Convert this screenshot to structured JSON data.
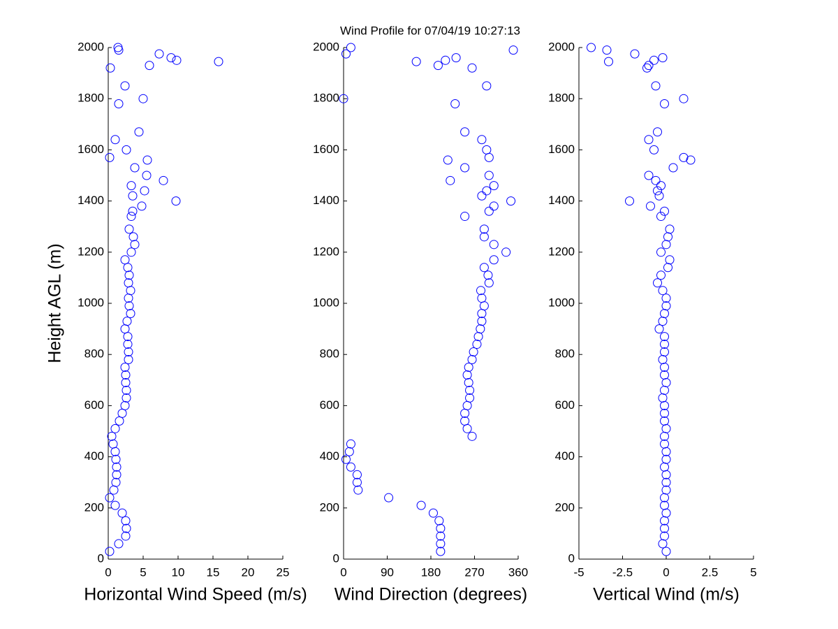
{
  "title": "Wind Profile for  07/04/19 10:27:13",
  "chart_data": [
    {
      "type": "scatter",
      "xlabel": "Horizontal Wind Speed (m/s)",
      "ylabel": "Height AGL (m)",
      "color": "#0000ff",
      "xlim": [
        0,
        25
      ],
      "xticks": [
        0,
        5,
        10,
        15,
        20,
        25
      ],
      "ylim": [
        0,
        2000
      ],
      "yticks": [
        0,
        200,
        400,
        600,
        800,
        1000,
        1200,
        1400,
        1600,
        1800,
        2000
      ],
      "x": [
        0.2,
        1.5,
        2.5,
        2.6,
        2.5,
        2.0,
        1.0,
        0.2,
        0.8,
        1.1,
        1.2,
        1.2,
        1.1,
        1.0,
        0.7,
        0.5,
        1.0,
        1.6,
        2.0,
        2.4,
        2.6,
        2.6,
        2.5,
        2.5,
        2.4,
        2.9,
        2.9,
        2.8,
        2.8,
        2.4,
        2.7,
        3.2,
        3.0,
        2.9,
        3.2,
        2.9,
        3.0,
        2.8,
        2.4,
        3.3,
        3.8,
        3.6,
        3.0,
        3.3,
        3.5,
        4.8,
        9.7,
        3.5,
        5.2,
        3.3,
        7.9,
        5.5,
        3.8,
        5.6,
        0.2,
        2.6,
        1.0,
        4.4,
        1.5,
        5.0,
        2.4,
        0.3,
        5.9,
        15.8,
        9.8,
        9.0,
        7.3,
        1.5,
        1.4
      ],
      "y": [
        30,
        60,
        90,
        120,
        150,
        180,
        210,
        240,
        270,
        300,
        330,
        360,
        390,
        420,
        450,
        480,
        510,
        540,
        570,
        600,
        630,
        660,
        690,
        720,
        750,
        780,
        810,
        840,
        870,
        900,
        930,
        960,
        990,
        1020,
        1050,
        1080,
        1110,
        1140,
        1170,
        1200,
        1230,
        1260,
        1290,
        1340,
        1360,
        1380,
        1400,
        1420,
        1440,
        1460,
        1480,
        1500,
        1530,
        1560,
        1570,
        1600,
        1640,
        1670,
        1780,
        1800,
        1850,
        1920,
        1930,
        1945,
        1950,
        1960,
        1975,
        1990,
        2000
      ]
    },
    {
      "type": "scatter",
      "xlabel": "Wind Direction (degrees)",
      "color": "#0000ff",
      "xlim": [
        0,
        360
      ],
      "xticks": [
        0,
        90,
        180,
        270,
        360
      ],
      "ylim": [
        0,
        2000
      ],
      "yticks": [
        0,
        200,
        400,
        600,
        800,
        1000,
        1200,
        1400,
        1600,
        1800,
        2000
      ],
      "x": [
        200,
        200,
        200,
        200,
        197,
        185,
        160,
        93,
        30,
        28,
        28,
        15,
        5,
        12,
        15,
        265,
        255,
        250,
        250,
        255,
        260,
        260,
        258,
        255,
        258,
        265,
        268,
        275,
        278,
        282,
        285,
        285,
        290,
        285,
        283,
        300,
        298,
        290,
        310,
        335,
        310,
        290,
        290,
        250,
        300,
        310,
        345,
        285,
        295,
        310,
        220,
        300,
        250,
        215,
        300,
        295,
        285,
        250,
        230,
        0,
        295,
        265,
        195,
        150,
        210,
        232,
        5,
        350,
        15
      ],
      "y": [
        30,
        60,
        90,
        120,
        150,
        180,
        210,
        240,
        270,
        300,
        330,
        360,
        390,
        420,
        450,
        480,
        510,
        540,
        570,
        600,
        630,
        660,
        690,
        720,
        750,
        780,
        810,
        840,
        870,
        900,
        930,
        960,
        990,
        1020,
        1050,
        1080,
        1110,
        1140,
        1170,
        1200,
        1230,
        1260,
        1290,
        1340,
        1360,
        1380,
        1400,
        1420,
        1440,
        1460,
        1480,
        1500,
        1530,
        1560,
        1570,
        1600,
        1640,
        1670,
        1780,
        1800,
        1850,
        1920,
        1930,
        1945,
        1950,
        1960,
        1975,
        1990,
        2000
      ]
    },
    {
      "type": "scatter",
      "xlabel": "Vertical Wind (m/s)",
      "color": "#0000ff",
      "xlim": [
        -5,
        5
      ],
      "xticks": [
        -5,
        -2.5,
        0,
        2.5,
        5
      ],
      "ylim": [
        0,
        2000
      ],
      "yticks": [
        0,
        200,
        400,
        600,
        800,
        1000,
        1200,
        1400,
        1600,
        1800,
        2000
      ],
      "x": [
        0,
        -0.2,
        -0.1,
        -0.1,
        -0.1,
        0,
        -0.1,
        -0.1,
        0,
        0,
        0,
        -0.1,
        0,
        0,
        -0.1,
        -0.1,
        0,
        -0.1,
        -0.1,
        -0.1,
        -0.2,
        -0.1,
        0,
        -0.1,
        -0.1,
        -0.2,
        -0.1,
        -0.1,
        -0.1,
        -0.4,
        -0.2,
        -0.1,
        0,
        0,
        -0.2,
        -0.5,
        -0.3,
        0.1,
        0.2,
        -0.3,
        0,
        0.1,
        0.2,
        -0.3,
        -0.1,
        -0.9,
        -2.1,
        -0.4,
        -0.5,
        -0.3,
        -0.6,
        -1.0,
        0.4,
        1.4,
        1.0,
        -0.7,
        -1.0,
        -0.5,
        -0.1,
        1.0,
        -0.6,
        -1.1,
        -1.0,
        -3.3,
        -0.7,
        -0.2,
        -1.8,
        -3.4,
        -4.3
      ],
      "y": [
        30,
        60,
        90,
        120,
        150,
        180,
        210,
        240,
        270,
        300,
        330,
        360,
        390,
        420,
        450,
        480,
        510,
        540,
        570,
        600,
        630,
        660,
        690,
        720,
        750,
        780,
        810,
        840,
        870,
        900,
        930,
        960,
        990,
        1020,
        1050,
        1080,
        1110,
        1140,
        1170,
        1200,
        1230,
        1260,
        1290,
        1340,
        1360,
        1380,
        1400,
        1420,
        1440,
        1460,
        1480,
        1500,
        1530,
        1560,
        1570,
        1600,
        1640,
        1670,
        1780,
        1800,
        1850,
        1920,
        1930,
        1945,
        1950,
        1960,
        1975,
        1990,
        2000
      ]
    }
  ]
}
